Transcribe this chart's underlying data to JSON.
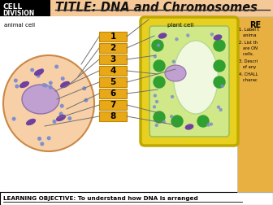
{
  "title": "TITLE: DNA and Chromosomes",
  "label_animal": "animal cell",
  "label_plant": "plant cell",
  "numbers": [
    "1",
    "2",
    "3",
    "4",
    "5",
    "6",
    "7",
    "8"
  ],
  "bottom_text": "LEARNING OBJECTIVE: To understand how DNA is arranged",
  "re_label": "RE",
  "re_items": [
    "1. Label t",
    "   anima",
    "2. List th",
    "   are ON",
    "   cells.",
    "3. Descri",
    "   of any",
    "4. CHALL",
    "   charac"
  ],
  "colors": {
    "black_bg": "#000000",
    "title_bg": "#f5c898",
    "white": "#ffffff",
    "animal_cell_fill": "#f7d0a8",
    "animal_cell_border": "#cc8844",
    "nucleus_fill": "#c0a0d0",
    "nucleus_border": "#9070a8",
    "plant_outer_fill": "#e8d020",
    "plant_outer_border": "#c0a800",
    "plant_inner_fill": "#d0e888",
    "plant_inner_border": "#a0c050",
    "vacuole_fill": "#f0f8e0",
    "vacuole_border": "#b8d890",
    "green_circle": "#30a030",
    "purple_oval": "#7040a0",
    "blue_dot": "#8090cc",
    "number_box": "#e8a818",
    "number_box_border": "#c08800",
    "re_box": "#e8b040",
    "bottom_border": "#000000",
    "line_color": "#707070"
  }
}
